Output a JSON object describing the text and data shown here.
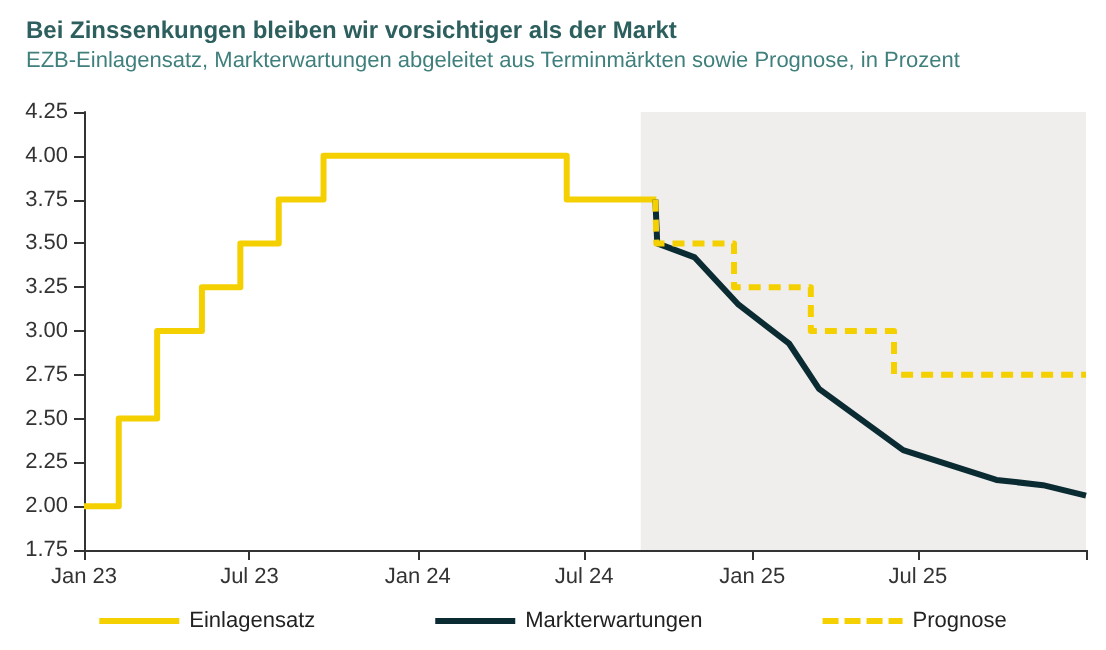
{
  "chart_data": {
    "type": "step",
    "title": "Bei Zinssenkungen bleiben wir vorsichtiger als der Markt",
    "subtitle": "EZB-Einlagensatz, Markterwartungen abgeleitet aus Terminmärkten sowie Prognose, in Prozent",
    "series": [
      {
        "name": "Einlagensatz",
        "color": "#f5d000",
        "line_style": "solid",
        "x": [
          "2023-01-01",
          "2023-02-08",
          "2023-03-22",
          "2023-05-10",
          "2023-06-21",
          "2023-08-02",
          "2023-09-20",
          "2024-06-12",
          "2024-09-18"
        ],
        "values": [
          2.0,
          2.5,
          3.0,
          3.25,
          3.5,
          3.75,
          4.0,
          3.75,
          3.75
        ]
      },
      {
        "name": "Markterwartungen",
        "type": "line",
        "color": "#0b2b33",
        "line_style": "solid",
        "x": [
          "2024-09-17",
          "2024-09-19",
          "2024-10-30",
          "2024-12-17",
          "2025-02-10",
          "2025-03-15",
          "2025-06-15",
          "2025-09-25",
          "2025-11-15",
          "2026-01-01"
        ],
        "values": [
          3.75,
          3.5,
          3.42,
          3.15,
          2.93,
          2.67,
          2.32,
          2.15,
          2.12,
          2.06
        ]
      },
      {
        "name": "Prognose",
        "color": "#f5d000",
        "line_style": "dashed",
        "x": [
          "2024-09-17",
          "2024-09-18",
          "2024-12-12",
          "2025-03-06",
          "2025-06-05",
          "2026-01-01"
        ],
        "values": [
          3.75,
          3.5,
          3.25,
          3.0,
          2.75,
          2.75
        ]
      }
    ],
    "xlim": [
      "2023-01-01",
      "2026-01-01"
    ],
    "xticks": [
      {
        "value": "2023-01-01",
        "label": "Jan 23"
      },
      {
        "value": "2023-07-01",
        "label": "Jul 23"
      },
      {
        "value": "2024-01-01",
        "label": "Jan 24"
      },
      {
        "value": "2024-07-01",
        "label": "Jul 24"
      },
      {
        "value": "2025-01-01",
        "label": "Jan 25"
      },
      {
        "value": "2025-07-01",
        "label": "Jul 25"
      },
      {
        "value": "2026-01-01",
        "label": null
      }
    ],
    "ylim": [
      1.75,
      4.25
    ],
    "yticks": [
      {
        "value": 1.75,
        "label": "1.75"
      },
      {
        "value": 2,
        "label": "2.00"
      },
      {
        "value": 2.25,
        "label": "2.25"
      },
      {
        "value": 2.5,
        "label": "2.50"
      },
      {
        "value": 2.75,
        "label": "2.75"
      },
      {
        "value": 3,
        "label": "3.00"
      },
      {
        "value": 3.25,
        "label": "3.25"
      },
      {
        "value": 3.5,
        "label": "3.50"
      },
      {
        "value": 3.75,
        "label": "3.75"
      },
      {
        "value": 4,
        "label": "4.00"
      },
      {
        "value": 4.25,
        "label": "4.25"
      }
    ],
    "bands": [
      {
        "axis": "x",
        "from": "2024-09-01",
        "to": "2026-01-01",
        "color": "#efeeec"
      }
    ],
    "grid": false,
    "legend": "bottom",
    "marker": "none"
  }
}
